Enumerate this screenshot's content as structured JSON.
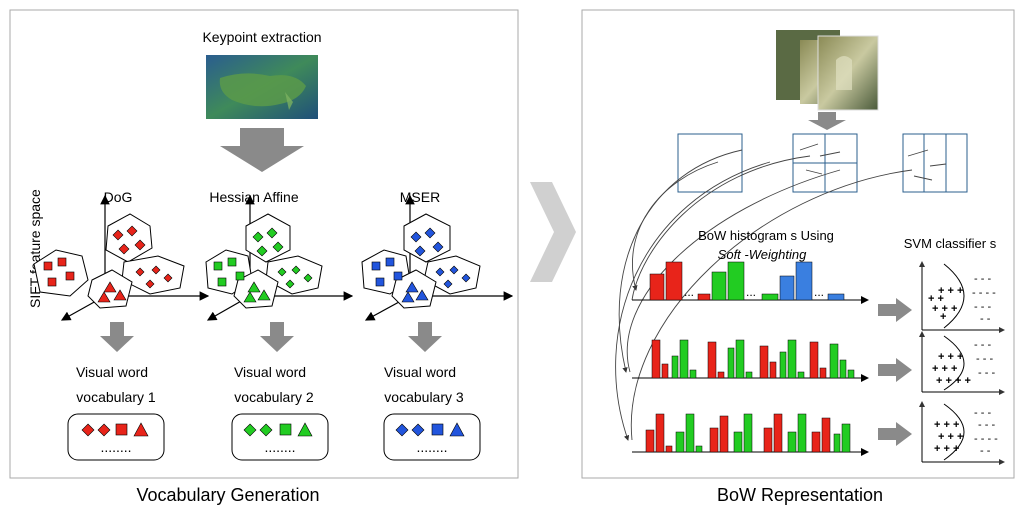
{
  "left_panel": {
    "keypoint_label": "Keypoint extraction",
    "axis_label": "SIFT feature space",
    "detectors": [
      {
        "name": "DoG",
        "color": "#e8241a",
        "vocab_line1": "Visual word",
        "vocab_line2": "vocabulary 1"
      },
      {
        "name": "Hessian Affine",
        "color": "#22cc22",
        "vocab_line1": "Visual word",
        "vocab_line2": "vocabulary 2"
      },
      {
        "name": "MSER",
        "color": "#2255dd",
        "vocab_line1": "Visual word",
        "vocab_line2": "vocabulary 3"
      }
    ],
    "dots": "........",
    "caption": "Vocabulary Generation"
  },
  "right_panel": {
    "hist_title_line1": "BoW histogram s Using",
    "hist_title_line2": "Soft -Weighting",
    "svm_label": "SVM classifier s",
    "caption": "BoW Representation"
  },
  "colors": {
    "red": "#e8241a",
    "green": "#22cc22",
    "blue": "#3a7fe0",
    "arrow_gray": "#8a8a8a"
  }
}
